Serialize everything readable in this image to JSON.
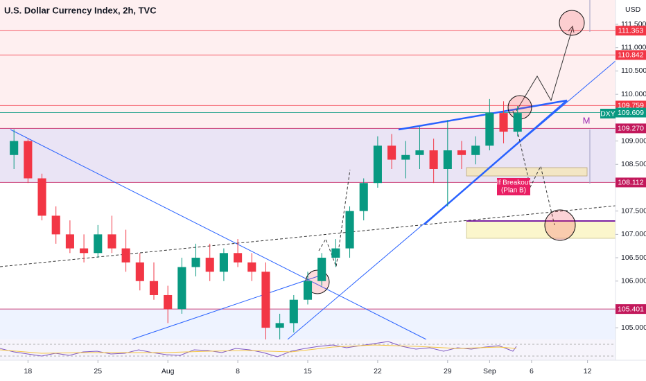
{
  "chart_data": {
    "type": "candlestick",
    "title": "U.S. Dollar Currency Index, 2h, TVC",
    "currency": "USD",
    "symbol": "DXY",
    "pattern_label": "M",
    "annotation_lines": [
      "If Breakout",
      "(Plan B)"
    ],
    "x": [
      -1,
      0,
      1,
      2,
      3,
      4,
      5,
      6,
      7,
      8,
      9,
      10,
      11,
      12,
      13,
      14,
      15,
      16,
      17,
      18,
      19,
      20,
      21,
      22,
      23,
      24,
      25,
      26,
      27,
      28,
      29,
      30,
      31,
      32,
      33,
      34,
      35
    ],
    "open": [
      108.7,
      109.0,
      108.2,
      107.4,
      107.0,
      106.7,
      106.6,
      107.0,
      106.7,
      106.4,
      106.0,
      105.7,
      105.4,
      106.3,
      106.5,
      106.2,
      106.6,
      106.4,
      106.2,
      105.0,
      105.1,
      105.6,
      106.0,
      106.5,
      106.7,
      107.5,
      108.1,
      108.9,
      108.6,
      108.7,
      108.8,
      108.4,
      108.8,
      108.7,
      108.9,
      109.6,
      109.2
    ],
    "high": [
      109.25,
      109.05,
      108.3,
      107.6,
      107.3,
      107.0,
      107.2,
      107.4,
      107.1,
      106.6,
      106.4,
      105.9,
      106.5,
      106.8,
      106.8,
      106.7,
      106.9,
      106.6,
      106.4,
      105.3,
      105.7,
      106.2,
      106.6,
      106.9,
      107.6,
      108.2,
      109.1,
      109.15,
      109.0,
      109.3,
      109.05,
      109.45,
      109.0,
      109.1,
      109.9,
      109.85,
      109.75
    ],
    "low": [
      108.4,
      108.1,
      107.3,
      106.8,
      106.6,
      106.4,
      106.5,
      106.6,
      106.2,
      105.8,
      105.6,
      105.1,
      105.3,
      106.1,
      106.0,
      106.0,
      106.3,
      106.0,
      104.7,
      104.65,
      104.9,
      105.5,
      105.9,
      106.3,
      106.5,
      107.3,
      108.0,
      108.4,
      108.2,
      108.4,
      108.1,
      107.6,
      108.4,
      108.5,
      108.8,
      108.95,
      109.1
    ],
    "close": [
      109.0,
      108.2,
      107.4,
      107.0,
      106.7,
      106.6,
      107.0,
      106.7,
      106.4,
      106.0,
      105.7,
      105.4,
      106.3,
      106.5,
      106.2,
      106.6,
      106.4,
      106.2,
      105.0,
      105.1,
      105.6,
      106.0,
      106.5,
      106.7,
      107.5,
      108.1,
      108.9,
      108.6,
      108.7,
      108.8,
      108.4,
      108.8,
      108.7,
      108.9,
      109.6,
      109.2,
      109.6
    ],
    "up_color": "#089981",
    "down_color": "#f23645",
    "xlim": [
      -2,
      42
    ],
    "xticks": [
      {
        "value": 0,
        "label": "18"
      },
      {
        "value": 5,
        "label": "25"
      },
      {
        "value": 10,
        "label": "Aug"
      },
      {
        "value": 15,
        "label": "8"
      },
      {
        "value": 20,
        "label": "15"
      },
      {
        "value": 25,
        "label": "22"
      },
      {
        "value": 30,
        "label": "29"
      },
      {
        "value": 33,
        "label": "Sep"
      },
      {
        "value": 36,
        "label": "6"
      },
      {
        "value": 40,
        "label": "12"
      }
    ],
    "ylim": [
      104.75,
      112.02
    ],
    "yticks": [
      {
        "value": 111.5,
        "label": "111.500"
      },
      {
        "value": 111,
        "label": "111.000"
      },
      {
        "value": 110.5,
        "label": "110.500"
      },
      {
        "value": 110,
        "label": "110.000"
      },
      {
        "value": 109,
        "label": "109.000"
      },
      {
        "value": 108.5,
        "label": "108.500"
      },
      {
        "value": 107.5,
        "label": "107.500"
      },
      {
        "value": 107,
        "label": "107.000"
      },
      {
        "value": 106.5,
        "label": "106.500"
      },
      {
        "value": 106,
        "label": "106.000"
      },
      {
        "value": 105,
        "label": "105.000"
      }
    ],
    "levels": [
      {
        "value": 111.363,
        "label": "111.363",
        "color": "#f23645"
      },
      {
        "value": 110.842,
        "label": "110.842",
        "color": "#f23645"
      },
      {
        "value": 109.759,
        "label": "109.759",
        "color": "#f23645"
      },
      {
        "value": 109.609,
        "label": "109.609",
        "color": "#089981"
      },
      {
        "value": 109.27,
        "label": "109.270",
        "color": "#c2185b"
      },
      {
        "value": 108.112,
        "label": "108.112",
        "color": "#c2185b"
      },
      {
        "value": 105.401,
        "label": "105.401",
        "color": "#c2185b"
      }
    ],
    "grid": false
  }
}
